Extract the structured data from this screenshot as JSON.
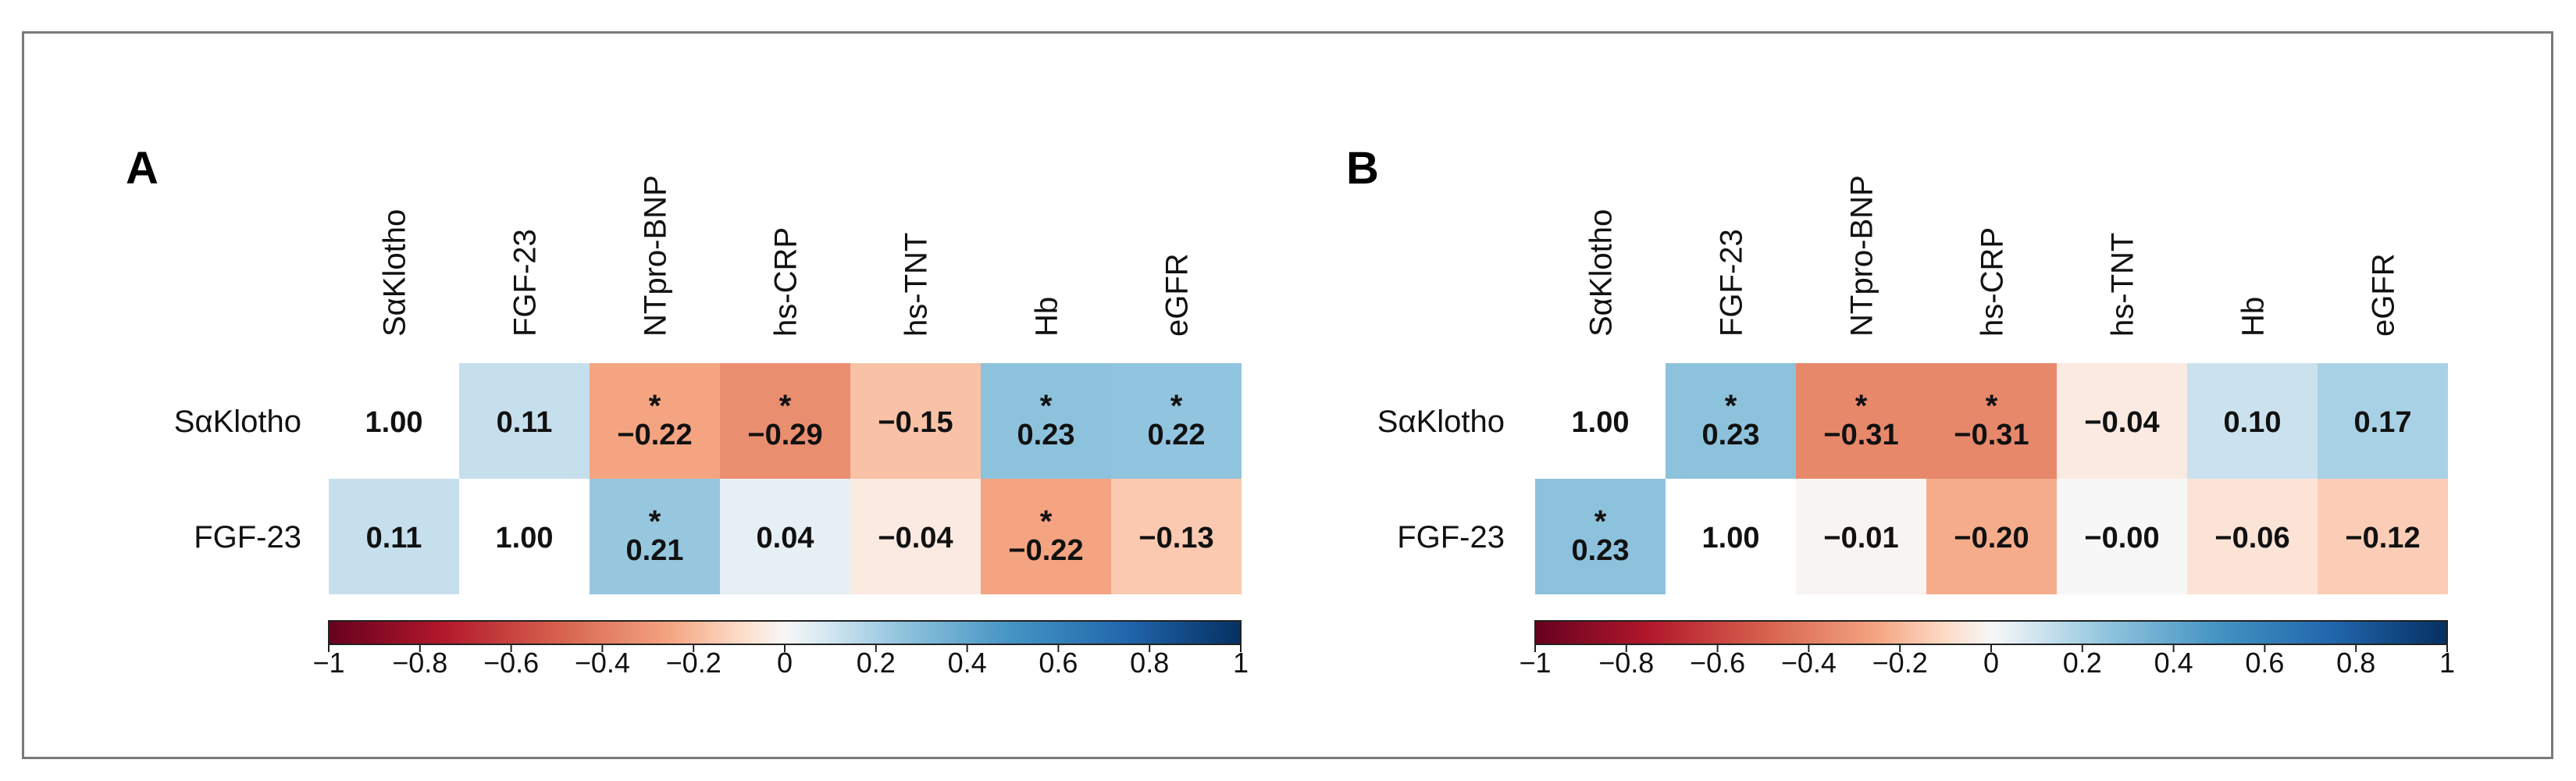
{
  "chart_data": [
    {
      "type": "heatmap",
      "panel_label": "A",
      "rows": [
        "SαKlotho",
        "FGF-23"
      ],
      "columns": [
        "SαKlotho",
        "FGF-23",
        "NTpro-BNP",
        "hs-CRP",
        "hs-TNT",
        "Hb",
        "eGFR"
      ],
      "values": [
        [
          1.0,
          0.11,
          -0.22,
          -0.29,
          -0.15,
          0.23,
          0.22
        ],
        [
          0.11,
          1.0,
          0.21,
          0.04,
          -0.04,
          -0.22,
          -0.13
        ]
      ],
      "labels": [
        [
          "1.00",
          "0.11",
          "−0.22",
          "−0.29",
          "−0.15",
          "0.23",
          "0.22"
        ],
        [
          "0.11",
          "1.00",
          "0.21",
          "0.04",
          "−0.04",
          "−0.22",
          "−0.13"
        ]
      ],
      "significant": [
        [
          false,
          false,
          true,
          true,
          false,
          true,
          true
        ],
        [
          false,
          false,
          true,
          false,
          false,
          true,
          false
        ]
      ],
      "colorbar": {
        "range": [
          -1,
          1
        ],
        "ticks": [
          "−1",
          "−0.8",
          "−0.6",
          "−0.4",
          "−0.2",
          "0",
          "0.2",
          "0.4",
          "0.6",
          "0.8",
          "1"
        ]
      }
    },
    {
      "type": "heatmap",
      "panel_label": "B",
      "rows": [
        "SαKlotho",
        "FGF-23"
      ],
      "columns": [
        "SαKlotho",
        "FGF-23",
        "NTpro-BNP",
        "hs-CRP",
        "hs-TNT",
        "Hb",
        "eGFR"
      ],
      "values": [
        [
          1.0,
          0.23,
          -0.31,
          -0.31,
          -0.04,
          0.1,
          0.17
        ],
        [
          0.23,
          1.0,
          -0.01,
          -0.2,
          -0.0,
          -0.06,
          -0.12
        ]
      ],
      "labels": [
        [
          "1.00",
          "0.23",
          "−0.31",
          "−0.31",
          "−0.04",
          "0.10",
          "0.17"
        ],
        [
          "0.23",
          "1.00",
          "−0.01",
          "−0.20",
          "−0.00",
          "−0.06",
          "−0.12"
        ]
      ],
      "significant": [
        [
          false,
          true,
          true,
          true,
          false,
          false,
          false
        ],
        [
          true,
          false,
          false,
          false,
          false,
          false,
          false
        ]
      ],
      "colorbar": {
        "range": [
          -1,
          1
        ],
        "ticks": [
          "−1",
          "−0.8",
          "−0.6",
          "−0.4",
          "−0.2",
          "0",
          "0.2",
          "0.4",
          "0.6",
          "0.8",
          "1"
        ]
      }
    }
  ],
  "significance_marker": "*",
  "colors": {
    "negative_end": "#67001f",
    "positive_end": "#053061",
    "diagonal": "#ffffff",
    "frame": "#7a7a7a",
    "text": "#111111"
  }
}
